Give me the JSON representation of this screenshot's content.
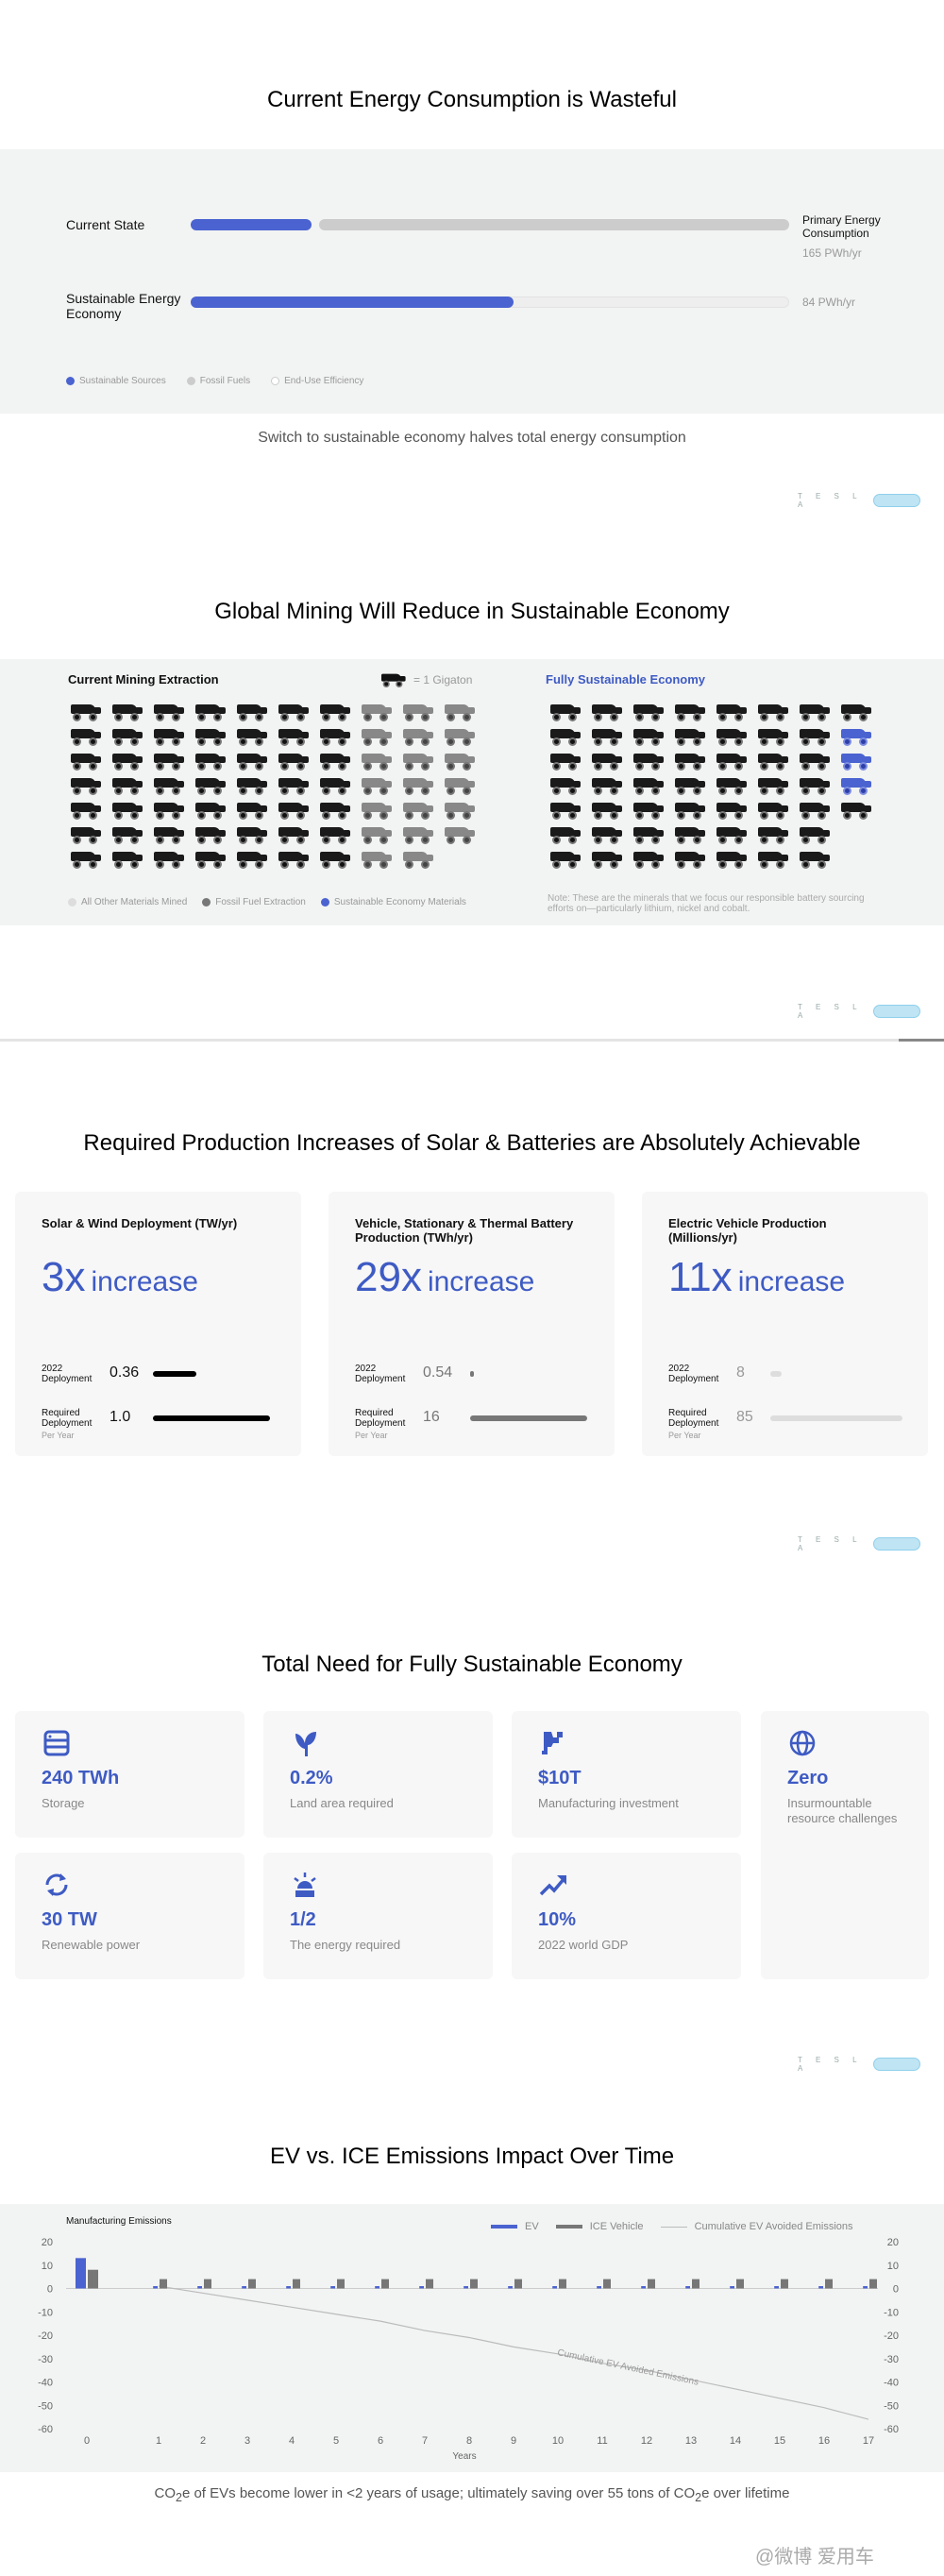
{
  "section1": {
    "title": "Current Energy Consumption is Wasteful",
    "rows": [
      {
        "label": "Current State",
        "right_label": "Primary Energy Consumption",
        "right_value": "165 PWh/yr",
        "sustainable": 0.2,
        "fossil": 0.8
      },
      {
        "label": "Sustainable Energy Economy",
        "right_value": "84 PWh/yr",
        "sustainable": 0.54,
        "fossil": 0
      }
    ],
    "legend": [
      "Sustainable Sources",
      "Fossil Fuels",
      "End-Use Efficiency"
    ],
    "caption": "Switch to sustainable economy halves total energy consumption",
    "colors": {
      "sustainable": "#4a63d0",
      "fossil": "#cccccc",
      "efficiency": "#eeeeee"
    }
  },
  "section2": {
    "title": "Global Mining Will Reduce in Sustainable Economy",
    "left_title": "Current Mining Extraction",
    "gigaton_note": "= 1 Gigaton",
    "right_title": "Fully Sustainable Economy",
    "legend": [
      "All Other Materials Mined",
      "Fossil Fuel Extraction",
      "Sustainable Economy Materials"
    ],
    "note": "Note: These are the minerals that we focus our responsible battery sourcing efforts on—particularly lithium, nickel and cobalt."
  },
  "section3": {
    "title": "Required Production Increases of Solar & Batteries are Absolutely Achievable",
    "cards": [
      {
        "title": "Solar & Wind Deployment (TW/yr)",
        "factor": "3x",
        "word": "increase",
        "deploy_label": "2022 Deployment",
        "deploy_value": "0.36",
        "required_label": "Required Deployment",
        "required_sub": "Per Year",
        "required_value": "1.0"
      },
      {
        "title": "Vehicle, Stationary & Thermal Battery Production (TWh/yr)",
        "factor": "29x",
        "word": "increase",
        "deploy_label": "2022 Deployment",
        "deploy_value": "0.54",
        "required_label": "Required Deployment",
        "required_sub": "Per Year",
        "required_value": "16"
      },
      {
        "title": "Electric Vehicle Production (Millions/yr)",
        "factor": "11x",
        "word": "increase",
        "deploy_label": "2022 Deployment",
        "deploy_value": "8",
        "required_label": "Required Deployment",
        "required_sub": "Per Year",
        "required_value": "85"
      }
    ]
  },
  "section4": {
    "title": "Total Need for Fully Sustainable Economy",
    "cards": [
      {
        "icon": "server-icon",
        "value": "240 TWh",
        "label": "Storage"
      },
      {
        "icon": "leaf-icon",
        "value": "0.2%",
        "label": "Land area required"
      },
      {
        "icon": "factory-icon",
        "value": "$10T",
        "label": "Manufacturing investment"
      },
      {
        "icon": "globe-icon",
        "value": "Zero",
        "label": "Insurmountable resource challenges"
      },
      {
        "icon": "refresh-icon",
        "value": "30 TW",
        "label": "Renewable power"
      },
      {
        "icon": "sun-icon",
        "value": "1/2",
        "label": "The energy required"
      },
      {
        "icon": "trend-icon",
        "value": "10%",
        "label": "2022 world GDP"
      }
    ]
  },
  "section5": {
    "title": "EV vs. ICE Emissions Impact Over Time",
    "caption_parts": [
      "CO",
      "2",
      "e of EVs become lower in <2 years of usage; ultimately saving over 55 tons of CO",
      "2",
      "e over lifetime"
    ]
  },
  "chart_data": {
    "type": "bar",
    "subtitle": "Manufacturing Emissions",
    "xlabel": "Years",
    "x": [
      0,
      1,
      2,
      3,
      4,
      5,
      6,
      7,
      8,
      9,
      10,
      11,
      12,
      13,
      14,
      15,
      16,
      17
    ],
    "ylim": [
      -60,
      20
    ],
    "yticks": [
      20,
      10,
      0,
      -10,
      -20,
      -30,
      -40,
      -50,
      -60
    ],
    "series": [
      {
        "name": "EV",
        "color": "#4a63d0",
        "values": [
          13,
          1,
          1,
          1,
          1,
          1,
          1,
          1,
          1,
          1,
          1,
          1,
          1,
          1,
          1,
          1,
          1,
          1
        ]
      },
      {
        "name": "ICE Vehicle",
        "color": "#777777",
        "values": [
          8,
          4,
          4,
          4,
          4,
          4,
          4,
          4,
          4,
          4,
          4,
          4,
          4,
          4,
          4,
          4,
          4,
          4
        ]
      },
      {
        "name": "Cumulative EV Avoided Emissions",
        "color": "#bbbbbb",
        "type": "line",
        "values": [
          null,
          1,
          -2,
          -5,
          -8,
          -11,
          -14,
          -18,
          -21,
          -25,
          -28,
          -32,
          -35,
          -39,
          -43,
          -47,
          -51,
          -56
        ]
      }
    ],
    "annotation": "Cumulative EV Avoided Emissions"
  },
  "footer": {
    "brand": "T E S L A",
    "watermark": "@微博 爱用车"
  }
}
